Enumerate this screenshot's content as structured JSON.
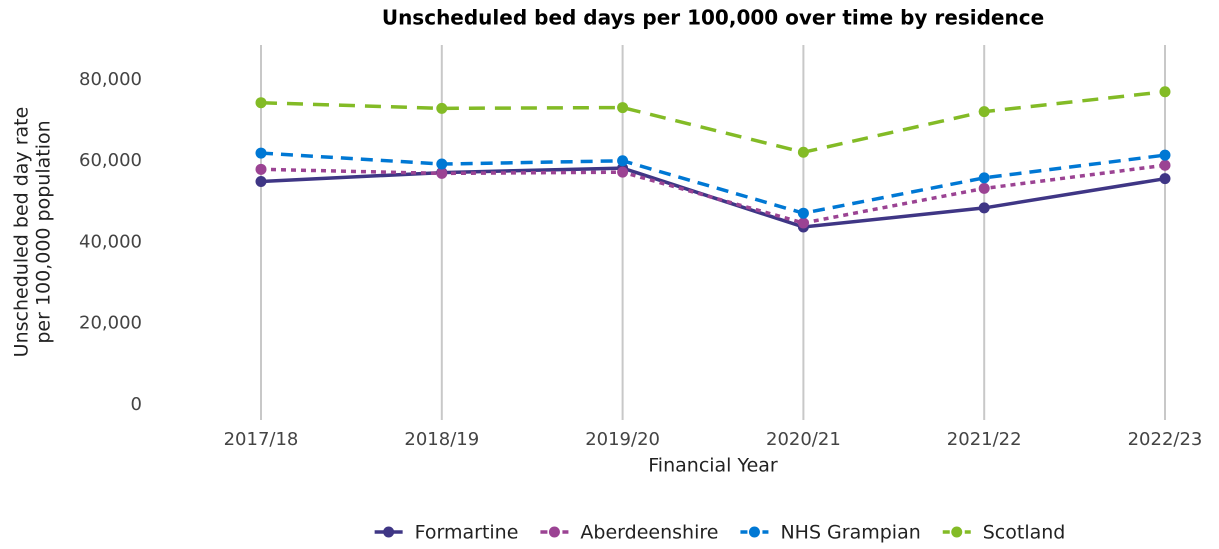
{
  "chart_data": {
    "type": "line",
    "title": "Unscheduled bed days per 100,000 over time by residence",
    "x_label": "Financial Year",
    "y_label": [
      "Unscheduled bed day rate",
      "per 100,000 population"
    ],
    "categories": [
      "2017/18",
      "2018/19",
      "2019/20",
      "2020/21",
      "2021/22",
      "2022/23"
    ],
    "series": [
      {
        "name": "Formartine",
        "color": "#3f3685",
        "dash": "solid",
        "values": [
          55000,
          57200,
          58300,
          43800,
          48500,
          55700
        ]
      },
      {
        "name": "Aberdeenshire",
        "color": "#9b4393",
        "dash": "dotted",
        "values": [
          58000,
          57000,
          57300,
          44800,
          53300,
          59000
        ]
      },
      {
        "name": "NHS Grampian",
        "color": "#0078d4",
        "dash": "dashed",
        "values": [
          62000,
          59300,
          60100,
          47200,
          55900,
          61500
        ]
      },
      {
        "name": "Scotland",
        "color": "#83bb26",
        "dash": "longdash",
        "values": [
          74400,
          73000,
          73200,
          62200,
          72200,
          77100
        ]
      }
    ],
    "ylim": [
      -3700,
      88600
    ],
    "yticks": [
      0,
      {
        "value": 20000,
        "label": "20,000"
      },
      {
        "value": 40000,
        "label": "40,000"
      },
      {
        "value": 60000,
        "label": "60,000"
      },
      {
        "value": 80000,
        "label": "80,000"
      }
    ],
    "grid": "x",
    "legend": "bottom"
  }
}
